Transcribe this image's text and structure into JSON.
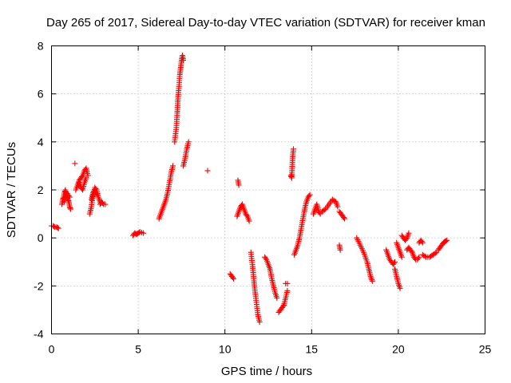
{
  "chart_data": {
    "type": "scatter",
    "title": "Day 265 of 2017, Sidereal Day-to-day VTEC variation (SDTVAR) for receiver kman",
    "xlabel": "GPS time / hours",
    "ylabel": "SDTVAR / TECUs",
    "xlim": [
      0,
      25
    ],
    "ylim": [
      -4,
      8
    ],
    "xticks": [
      0,
      5,
      10,
      15,
      20,
      25
    ],
    "yticks": [
      -4,
      -2,
      0,
      2,
      4,
      6,
      8
    ],
    "grid": true,
    "marker": "+",
    "color": "#ff0000",
    "segments": [
      {
        "x": [
          0.0,
          0.1,
          0.2,
          0.3,
          0.4
        ],
        "y": [
          0.5,
          0.5,
          0.45,
          0.45,
          0.4
        ]
      },
      {
        "x": [
          0.6,
          0.65,
          0.7,
          0.75,
          0.8,
          0.85,
          0.9,
          0.95,
          1.0,
          1.05,
          1.1
        ],
        "y": [
          1.4,
          1.6,
          1.7,
          1.9,
          2.0,
          1.8,
          1.7,
          1.6,
          1.5,
          1.3,
          1.2
        ]
      },
      {
        "x": [
          0.75,
          0.85,
          0.95,
          1.05
        ],
        "y": [
          1.5,
          1.9,
          1.8,
          1.7
        ]
      },
      {
        "x": [
          1.35
        ],
        "y": [
          3.1
        ]
      },
      {
        "x": [
          1.4,
          1.5,
          1.6,
          1.7,
          1.8,
          1.9,
          2.0,
          2.1
        ],
        "y": [
          2.0,
          2.2,
          2.4,
          2.5,
          2.6,
          2.8,
          2.9,
          2.6
        ]
      },
      {
        "x": [
          1.6,
          1.7,
          1.8,
          1.9,
          2.0
        ],
        "y": [
          2.3,
          2.1,
          2.0,
          2.3,
          2.5
        ]
      },
      {
        "x": [
          2.2,
          2.3,
          2.4,
          2.5,
          2.6,
          2.7,
          2.8
        ],
        "y": [
          1.0,
          1.3,
          1.8,
          2.1,
          2.0,
          1.7,
          1.5
        ]
      },
      {
        "x": [
          2.3,
          2.4,
          2.5,
          2.6
        ],
        "y": [
          1.6,
          1.9,
          2.0,
          1.8
        ]
      },
      {
        "x": [
          2.8,
          2.9,
          3.0,
          3.1
        ],
        "y": [
          1.4,
          1.5,
          1.4,
          1.4
        ]
      },
      {
        "x": [
          4.7,
          4.8,
          4.9,
          5.0,
          5.1,
          5.3
        ],
        "y": [
          0.1,
          0.2,
          0.15,
          0.2,
          0.25,
          0.2
        ]
      },
      {
        "x": [
          6.2,
          6.3,
          6.4,
          6.5,
          6.6,
          6.7,
          6.8,
          6.9,
          7.0
        ],
        "y": [
          0.8,
          1.0,
          1.2,
          1.4,
          1.6,
          1.9,
          2.3,
          2.7,
          3.0
        ]
      },
      {
        "x": [
          7.1,
          7.2,
          7.25,
          7.3,
          7.35,
          7.4,
          7.45,
          7.5,
          7.55,
          7.6
        ],
        "y": [
          4.0,
          4.6,
          5.2,
          5.9,
          6.3,
          6.8,
          7.1,
          7.4,
          7.6,
          7.4
        ]
      },
      {
        "x": [
          7.6,
          7.7,
          7.8,
          7.9
        ],
        "y": [
          3.0,
          3.3,
          3.7,
          4.0
        ]
      },
      {
        "x": [
          9.0
        ],
        "y": [
          2.8
        ]
      },
      {
        "x": [
          10.3,
          10.4,
          10.5
        ],
        "y": [
          -1.5,
          -1.6,
          -1.7
        ]
      },
      {
        "x": [
          10.7,
          10.8,
          10.9,
          11.0,
          11.1,
          11.2,
          11.3,
          11.4
        ],
        "y": [
          0.9,
          1.1,
          1.3,
          1.4,
          1.2,
          1.0,
          0.9,
          0.7
        ]
      },
      {
        "x": [
          10.75,
          10.8
        ],
        "y": [
          2.4,
          2.2
        ]
      },
      {
        "x": [
          11.5,
          11.6,
          11.7,
          11.8,
          11.9,
          12.0
        ],
        "y": [
          -0.6,
          -1.2,
          -2.0,
          -2.6,
          -3.2,
          -3.5
        ]
      },
      {
        "x": [
          12.3,
          12.4,
          12.5,
          12.6,
          12.7,
          12.8,
          12.9,
          13.0
        ],
        "y": [
          -0.8,
          -0.9,
          -1.1,
          -1.3,
          -1.7,
          -2.0,
          -2.3,
          -2.5
        ]
      },
      {
        "x": [
          13.1,
          13.2,
          13.3,
          13.4,
          13.5,
          13.6
        ],
        "y": [
          -3.1,
          -3.0,
          -2.9,
          -2.8,
          -2.5,
          -2.2
        ]
      },
      {
        "x": [
          13.5,
          13.6
        ],
        "y": [
          -1.9,
          -1.9
        ]
      },
      {
        "x": [
          13.8,
          13.85,
          13.9,
          13.95
        ],
        "y": [
          2.6,
          2.5,
          3.3,
          3.7
        ]
      },
      {
        "x": [
          14.0,
          14.1,
          14.2,
          14.3,
          14.4,
          14.5,
          14.6,
          14.7,
          14.8,
          14.9
        ],
        "y": [
          -0.7,
          -0.5,
          -0.3,
          0.0,
          0.4,
          0.8,
          1.2,
          1.5,
          1.7,
          1.8
        ]
      },
      {
        "x": [
          15.1,
          15.2,
          15.3,
          15.4,
          15.5
        ],
        "y": [
          1.0,
          1.2,
          1.4,
          1.1,
          1.0
        ]
      },
      {
        "x": [
          15.6,
          15.8,
          16.0,
          16.2,
          16.4,
          16.5
        ],
        "y": [
          1.1,
          1.2,
          1.4,
          1.6,
          1.5,
          1.3
        ]
      },
      {
        "x": [
          16.6,
          16.7,
          16.8,
          16.9
        ],
        "y": [
          1.1,
          1.0,
          0.9,
          0.8
        ]
      },
      {
        "x": [
          16.6,
          16.65
        ],
        "y": [
          -0.3,
          -0.5
        ]
      },
      {
        "x": [
          17.6,
          17.8,
          18.0,
          18.2,
          18.3,
          18.4,
          18.5
        ],
        "y": [
          0.0,
          -0.3,
          -0.6,
          -1.0,
          -1.3,
          -1.6,
          -1.8
        ]
      },
      {
        "x": [
          19.3,
          19.4,
          19.5,
          19.6,
          19.7,
          19.8
        ],
        "y": [
          -0.5,
          -0.7,
          -0.9,
          -1.0,
          -1.1,
          -1.0
        ]
      },
      {
        "x": [
          19.8,
          19.9,
          20.0,
          20.1
        ],
        "y": [
          -1.3,
          -1.6,
          -1.9,
          -2.1
        ]
      },
      {
        "x": [
          19.9,
          20.0,
          20.1,
          20.2
        ],
        "y": [
          -0.2,
          -0.4,
          -0.6,
          -0.8
        ]
      },
      {
        "x": [
          20.2,
          20.3,
          20.4,
          20.5,
          20.6
        ],
        "y": [
          0.1,
          0.0,
          -0.1,
          0.0,
          0.2
        ]
      },
      {
        "x": [
          20.5,
          20.6,
          20.7,
          20.8,
          20.9,
          21.0,
          21.1,
          21.2
        ],
        "y": [
          -0.5,
          -0.4,
          -0.5,
          -0.6,
          -0.8,
          -0.9,
          -0.9,
          -0.8
        ]
      },
      {
        "x": [
          21.2,
          21.3,
          21.4
        ],
        "y": [
          -0.2,
          -0.1,
          -0.2
        ]
      },
      {
        "x": [
          21.4,
          21.6,
          21.8,
          22.0,
          22.2
        ],
        "y": [
          -0.7,
          -0.8,
          -0.8,
          -0.7,
          -0.6
        ]
      },
      {
        "x": [
          22.3,
          22.4,
          22.5,
          22.6,
          22.7,
          22.8
        ],
        "y": [
          -0.5,
          -0.4,
          -0.3,
          -0.2,
          -0.15,
          -0.1
        ]
      }
    ]
  }
}
